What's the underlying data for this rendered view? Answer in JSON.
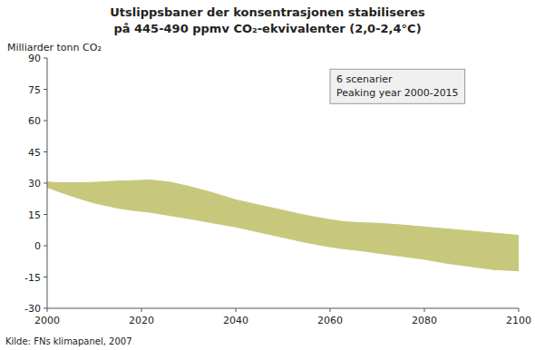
{
  "chart_data": {
    "type": "area_range",
    "title": "Utslippsbaner der konsentrasjonen stabiliseres",
    "subtitle": "på 445-490 ppmv CO₂-ekvivalenter (2,0-2,4°C)",
    "y_label": "Milliarder tonn CO₂",
    "annotations": [
      "6 scenarier",
      "Peaking year 2000-2015",
      "Kilde: FNs klimapanel, 2007"
    ],
    "color": "#c8c87d",
    "x": [
      2000,
      2003,
      2007,
      2010,
      2015,
      2018,
      2022,
      2026,
      2030,
      2035,
      2040,
      2045,
      2050,
      2055,
      2060,
      2063,
      2067,
      2070,
      2075,
      2080,
      2085,
      2090,
      2095,
      2100
    ],
    "series": [
      {
        "values": [
          30.5,
          30.2,
          30.2,
          30.4,
          31.0,
          31.2,
          31.5,
          30.5,
          28.5,
          25.5,
          22.0,
          19.5,
          17.0,
          14.5,
          12.5,
          11.5,
          11.0,
          10.8,
          10.0,
          9.0,
          8.0,
          7.0,
          6.0,
          5.0
        ]
      },
      {
        "values": [
          28.0,
          25.5,
          22.5,
          20.5,
          18.0,
          17.0,
          16.0,
          14.5,
          13.0,
          11.0,
          9.0,
          6.5,
          4.0,
          1.5,
          -0.5,
          -1.5,
          -2.5,
          -3.5,
          -5.0,
          -6.5,
          -8.5,
          -10.0,
          -11.5,
          -12.0
        ]
      }
    ],
    "xlim": [
      2000,
      2100
    ],
    "xticks": [
      2000,
      2020,
      2040,
      2060,
      2080,
      2100
    ],
    "ylim": [
      -30,
      90
    ],
    "yticks": [
      -30,
      -15,
      0,
      15,
      30,
      45,
      60,
      75,
      90
    ],
    "grid": false
  }
}
